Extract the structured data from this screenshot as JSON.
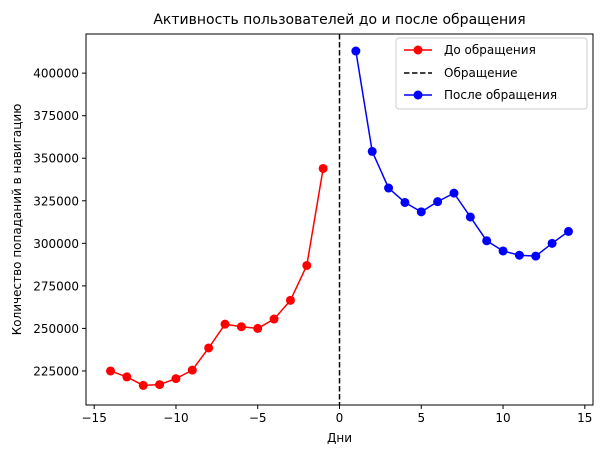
{
  "chart_data": {
    "type": "line",
    "title": "Активность пользователей до и после обращения",
    "xlabel": "Дни",
    "ylabel": "Количество попаданий в навигацию",
    "xlim": [
      -15.5,
      15.5
    ],
    "ylim": [
      205000,
      423000
    ],
    "xticks": [
      -15,
      -10,
      -5,
      0,
      5,
      10,
      15
    ],
    "xtick_labels": [
      "−15",
      "−10",
      "−5",
      "0",
      "5",
      "10",
      "15"
    ],
    "yticks": [
      225000,
      250000,
      275000,
      300000,
      325000,
      350000,
      375000,
      400000
    ],
    "ytick_labels": [
      "225000",
      "250000",
      "275000",
      "300000",
      "325000",
      "350000",
      "375000",
      "400000"
    ],
    "grid": false,
    "legend_position": "top-right",
    "series": [
      {
        "name": "До обращения",
        "color": "#ff0000",
        "marker": "circle",
        "x": [
          -14,
          -13,
          -12,
          -11,
          -10,
          -9,
          -8,
          -7,
          -6,
          -5,
          -4,
          -3,
          -2,
          -1
        ],
        "y": [
          225000,
          221500,
          216500,
          217000,
          220500,
          225500,
          238500,
          252500,
          251000,
          250000,
          255500,
          266500,
          287000,
          344000
        ]
      },
      {
        "name": "После обращения",
        "color": "#0000ff",
        "marker": "circle",
        "x": [
          1,
          2,
          3,
          4,
          5,
          6,
          7,
          8,
          9,
          10,
          11,
          12,
          13,
          14
        ],
        "y": [
          413000,
          354000,
          332500,
          324000,
          318500,
          324500,
          329500,
          315500,
          301500,
          295500,
          293000,
          292500,
          300000,
          307000
        ]
      }
    ],
    "vline": {
      "name": "Обращение",
      "x": 0,
      "color": "#000000",
      "style": "dashed"
    }
  }
}
